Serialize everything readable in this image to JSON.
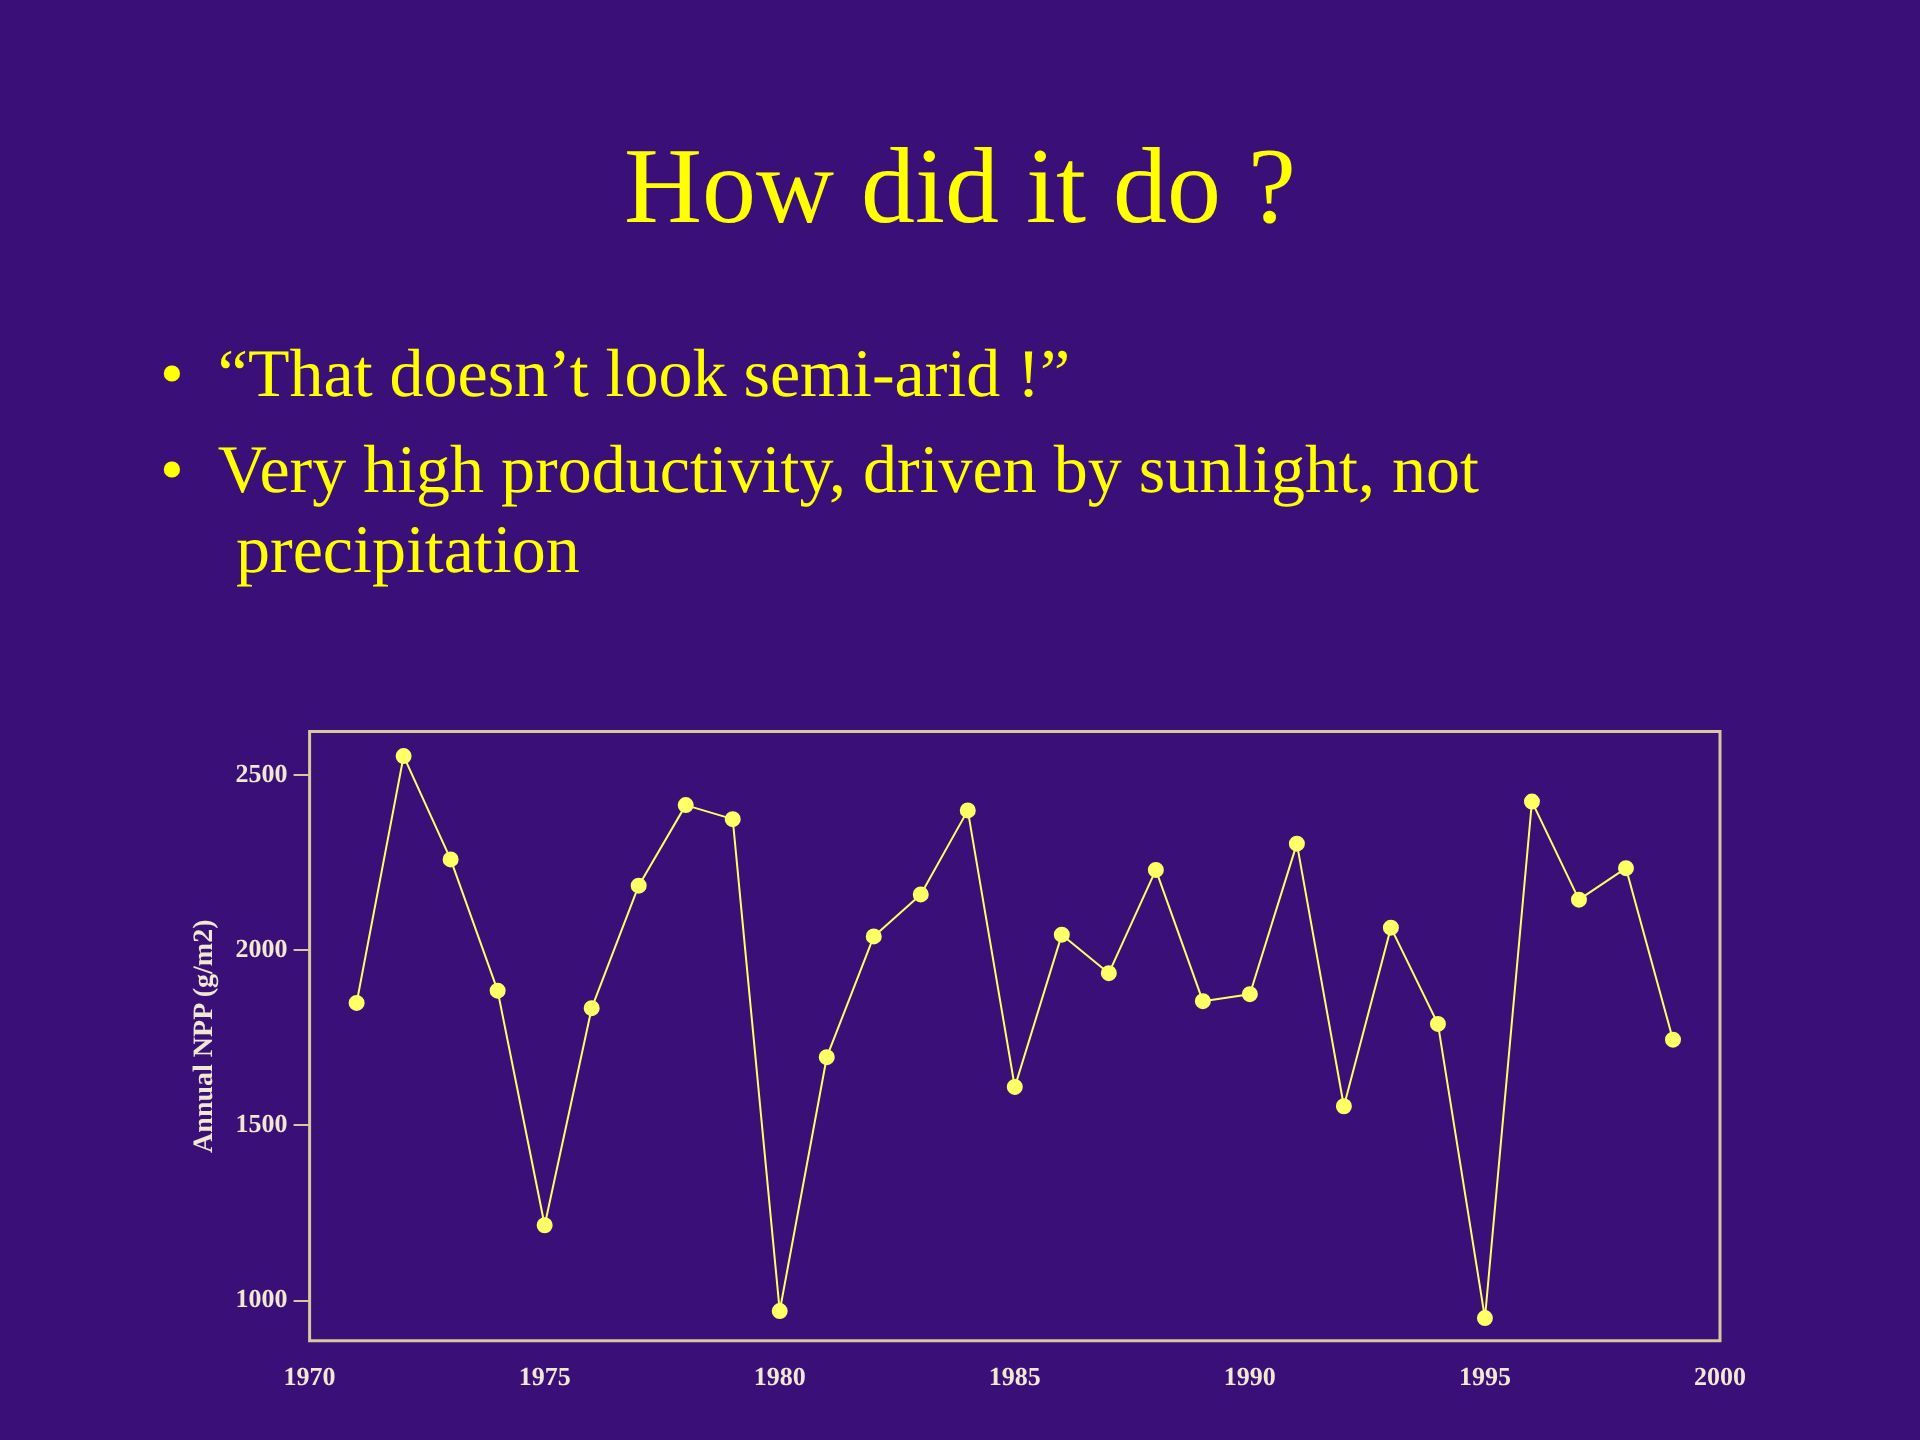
{
  "chart_data": {
    "type": "line",
    "title": "How did it do ?",
    "annotations": [
      "• “That doesn’t look semi-arid !”",
      "• Very high productivity, driven by sunlight, not precipitation"
    ],
    "ylabel": "Annual NPP (g/m2)",
    "x": [
      1971,
      1972,
      1973,
      1974,
      1975,
      1976,
      1977,
      1978,
      1979,
      1980,
      1981,
      1982,
      1983,
      1984,
      1985,
      1986,
      1987,
      1988,
      1989,
      1990,
      1991,
      1992,
      1993,
      1994,
      1995,
      1996,
      1997,
      1998,
      1999
    ],
    "series": [
      {
        "color": "#ffff66",
        "values": [
          1850,
          2555,
          2260,
          1885,
          1215,
          1835,
          2185,
          2415,
          2375,
          970,
          1695,
          2040,
          2160,
          2400,
          1610,
          2045,
          1935,
          2230,
          1855,
          1875,
          2305,
          1555,
          2065,
          1790,
          950,
          2425,
          2145,
          2235,
          1745
        ]
      }
    ],
    "xlim": [
      1970,
      2000
    ],
    "xticks": [
      1970,
      1975,
      1980,
      1985,
      1990,
      1995,
      2000
    ],
    "ylim": [
      885,
      2625
    ],
    "yticks": [
      1000,
      1500,
      2000,
      2500
    ],
    "grid": false,
    "legend": false,
    "marker": "circle",
    "line_style": "solid"
  }
}
